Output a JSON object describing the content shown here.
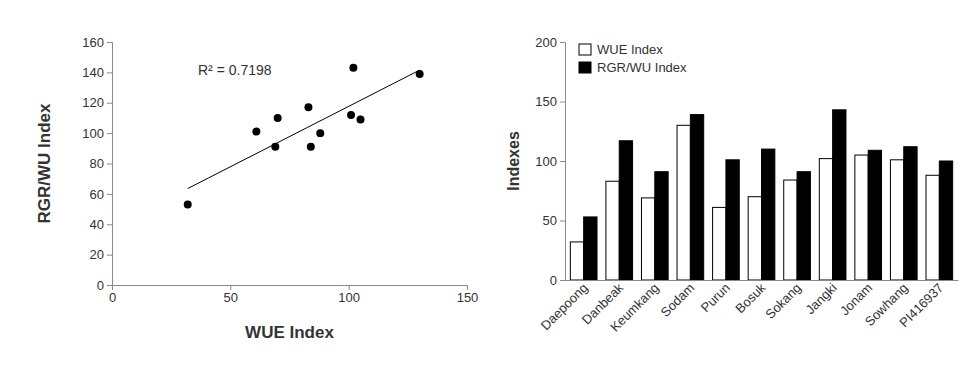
{
  "chart_data": [
    {
      "type": "scatter",
      "x_label": "WUE Index",
      "y_label": "RGR/WU Index",
      "annotation": "R² = 0.7198",
      "xlim": [
        0,
        150
      ],
      "xticks": [
        0,
        50,
        100,
        150
      ],
      "ylim": [
        0,
        160
      ],
      "yticks": [
        0,
        20,
        40,
        60,
        80,
        100,
        120,
        140,
        160
      ],
      "grid": false,
      "series": [
        {
          "type": "scatter",
          "color": "#000000",
          "marker": "circle",
          "x": [
            32,
            83,
            69,
            130,
            61,
            70,
            84,
            102,
            105,
            101,
            88
          ],
          "values": [
            53,
            117,
            91,
            139,
            101,
            110,
            91,
            143,
            109,
            112,
            100
          ]
        },
        {
          "type": "line",
          "color": "#000000",
          "line_style": "solid",
          "x": [
            32,
            130
          ],
          "values": [
            63.5,
            141.5
          ]
        }
      ]
    },
    {
      "type": "bar",
      "y_label": "Indexes",
      "categories": [
        "Daepoong",
        "Danbeak",
        "Keumkang",
        "Sodam",
        "Purun",
        "Bosuk",
        "Sokang",
        "Jangki",
        "Jonam",
        "Sowhang",
        "PI416937"
      ],
      "ylim": [
        0,
        200
      ],
      "yticks": [
        0,
        50,
        100,
        150,
        200
      ],
      "grid": false,
      "legend": "top-left",
      "series": [
        {
          "name": "WUE Index",
          "color": "#ffffff",
          "values": [
            32,
            83,
            69,
            130,
            61,
            70,
            84,
            102,
            105,
            101,
            88
          ]
        },
        {
          "name": "RGR/WU Index",
          "color": "#000000",
          "values": [
            53,
            117,
            91,
            139,
            101,
            110,
            91,
            143,
            109,
            112,
            100
          ]
        }
      ]
    }
  ]
}
